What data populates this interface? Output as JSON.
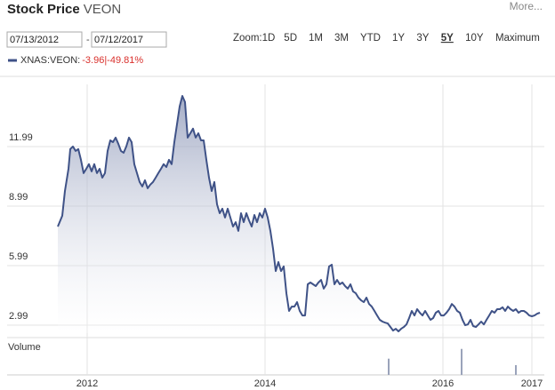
{
  "header": {
    "title": "Stock Price",
    "symbol": "VEON",
    "more": "More..."
  },
  "controls": {
    "start_date": "07/13/2012",
    "separator": "-",
    "end_date": "07/12/2017",
    "zoom_label": "Zoom:",
    "zoom_options": [
      "1D",
      "5D",
      "1M",
      "3M",
      "YTD",
      "1Y",
      "3Y",
      "5Y",
      "10Y",
      "Maximum"
    ],
    "active_zoom": "5Y"
  },
  "chart_data": {
    "type": "area",
    "legend": {
      "change": "-3.96|-49.81%",
      "change_color": "#d9302c"
    },
    "x": [
      2011.67,
      2011.72,
      2011.75,
      2011.79,
      2011.81,
      2011.84,
      2011.87,
      2011.9,
      2011.93,
      2011.96,
      2011.99,
      2012.02,
      2012.05,
      2012.08,
      2012.11,
      2012.14,
      2012.17,
      2012.2,
      2012.23,
      2012.26,
      2012.29,
      2012.32,
      2012.35,
      2012.38,
      2012.41,
      2012.44,
      2012.47,
      2012.5,
      2012.53,
      2012.56,
      2012.59,
      2012.62,
      2012.65,
      2012.68,
      2012.71,
      2012.74,
      2012.77,
      2012.8,
      2012.83,
      2012.86,
      2012.89,
      2012.92,
      2012.95,
      2012.98,
      2013.01,
      2013.04,
      2013.07,
      2013.1,
      2013.13,
      2013.16,
      2013.19,
      2013.22,
      2013.25,
      2013.28,
      2013.31,
      2013.34,
      2013.37,
      2013.4,
      2013.43,
      2013.46,
      2013.49,
      2013.52,
      2013.55,
      2013.58,
      2013.61,
      2013.64,
      2013.67,
      2013.7,
      2013.73,
      2013.76,
      2013.79,
      2013.82,
      2013.85,
      2013.88,
      2013.91,
      2013.94,
      2013.97,
      2014.0,
      2014.03,
      2014.06,
      2014.09,
      2014.12,
      2014.15,
      2014.18,
      2014.21,
      2014.24,
      2014.27,
      2014.3,
      2014.33,
      2014.36,
      2014.39,
      2014.42,
      2014.45,
      2014.48,
      2014.51,
      2014.54,
      2014.57,
      2014.6,
      2014.63,
      2014.66,
      2014.69,
      2014.72,
      2014.75,
      2014.78,
      2014.81,
      2014.84,
      2014.87,
      2014.9,
      2014.93,
      2014.96,
      2014.99,
      2015.02,
      2015.05,
      2015.08,
      2015.11,
      2015.14,
      2015.17,
      2015.2,
      2015.23,
      2015.26,
      2015.29,
      2015.32,
      2015.35,
      2015.38,
      2015.41,
      2015.44,
      2015.47,
      2015.5,
      2015.53,
      2015.56,
      2015.59,
      2015.62,
      2015.65,
      2015.68,
      2015.71,
      2015.74,
      2015.77,
      2015.8,
      2015.83,
      2015.86,
      2015.89,
      2015.92,
      2015.95,
      2015.98,
      2016.01,
      2016.04,
      2016.07,
      2016.1,
      2016.13,
      2016.16,
      2016.19,
      2016.22,
      2016.25,
      2016.28,
      2016.31,
      2016.34,
      2016.37,
      2016.4,
      2016.43,
      2016.46,
      2016.49,
      2016.52,
      2016.55,
      2016.58,
      2016.61,
      2016.64,
      2016.67,
      2016.7,
      2016.73,
      2016.76,
      2016.79,
      2016.82,
      2016.85,
      2016.88,
      2016.91,
      2016.94,
      2016.97,
      2017.0,
      2017.03,
      2017.06,
      2017.09
    ],
    "series": [
      {
        "name": "XNAS:VEON:",
        "color": "#3f5287",
        "values": [
          7.96,
          8.5,
          9.75,
          10.87,
          11.86,
          11.99,
          11.77,
          11.86,
          11.32,
          10.65,
          10.87,
          11.1,
          10.74,
          11.1,
          10.65,
          10.87,
          10.42,
          10.65,
          11.77,
          12.3,
          12.21,
          12.44,
          12.13,
          11.77,
          11.68,
          11.99,
          12.44,
          12.21,
          11.1,
          10.65,
          10.2,
          9.98,
          10.29,
          9.89,
          10.07,
          10.2,
          10.42,
          10.65,
          10.87,
          11.1,
          10.96,
          11.32,
          11.1,
          12.21,
          13.11,
          14.01,
          14.54,
          14.23,
          12.44,
          12.66,
          12.89,
          12.44,
          12.66,
          12.3,
          12.3,
          11.32,
          10.42,
          9.75,
          10.2,
          9.08,
          8.63,
          8.86,
          8.41,
          8.86,
          8.41,
          7.96,
          8.18,
          7.74,
          8.63,
          8.18,
          8.63,
          8.27,
          7.96,
          8.54,
          8.18,
          8.63,
          8.41,
          8.86,
          8.41,
          7.74,
          6.84,
          5.72,
          6.17,
          5.72,
          5.95,
          4.6,
          3.71,
          3.93,
          3.93,
          4.15,
          3.71,
          3.48,
          3.48,
          5.05,
          5.14,
          5.05,
          4.96,
          5.14,
          5.27,
          4.83,
          5.05,
          5.95,
          6.04,
          5.05,
          5.27,
          5.05,
          5.14,
          4.96,
          4.83,
          5.05,
          4.69,
          4.6,
          4.38,
          4.24,
          4.15,
          4.38,
          4.06,
          3.93,
          3.71,
          3.48,
          3.26,
          3.17,
          3.12,
          3.08,
          2.9,
          2.72,
          2.81,
          2.68,
          2.81,
          2.9,
          3.03,
          3.35,
          3.71,
          3.48,
          3.8,
          3.62,
          3.48,
          3.71,
          3.48,
          3.26,
          3.35,
          3.62,
          3.71,
          3.48,
          3.48,
          3.62,
          3.8,
          4.06,
          3.93,
          3.71,
          3.62,
          3.26,
          2.99,
          3.03,
          3.26,
          2.95,
          2.9,
          3.03,
          3.17,
          3.03,
          3.26,
          3.48,
          3.71,
          3.62,
          3.8,
          3.8,
          3.89,
          3.71,
          3.93,
          3.8,
          3.71,
          3.8,
          3.62,
          3.71,
          3.71,
          3.62,
          3.48,
          3.44,
          3.48,
          3.57,
          3.62
        ]
      }
    ],
    "xlim": [
      2011.1,
      2017.14
    ],
    "xticks": [
      2012,
      2014,
      2016,
      2017
    ],
    "ylim": [
      2.59,
      15.12
    ],
    "yticks": [
      2.99,
      5.99,
      8.99,
      11.99
    ],
    "grid": true,
    "volume": {
      "label": "Volume",
      "color": "#9aa3ba",
      "x": [
        2015.39,
        2016.21,
        2016.82
      ],
      "values": [
        20,
        32,
        12
      ],
      "ylim": [
        0,
        35
      ]
    }
  }
}
